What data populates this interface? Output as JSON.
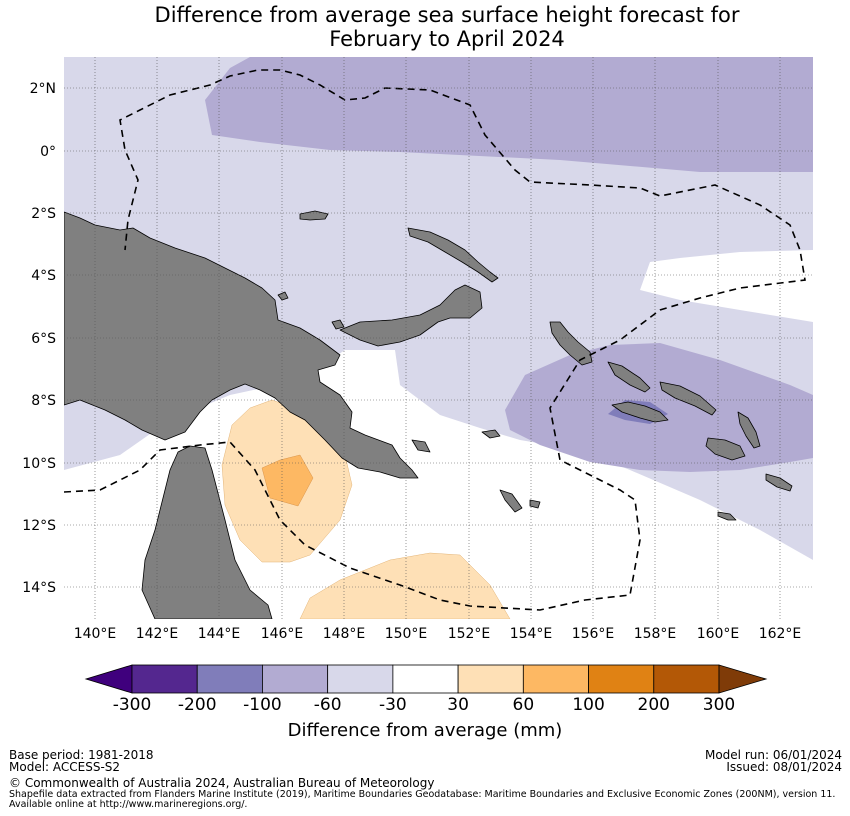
{
  "title_line1": "Difference from average sea surface height forecast for",
  "title_line2": "February to April 2024",
  "lat_labels": [
    "2°N",
    "0°",
    "2°S",
    "4°S",
    "6°S",
    "8°S",
    "10°S",
    "12°S",
    "14°S"
  ],
  "lon_labels": [
    "140°E",
    "142°E",
    "144°E",
    "146°E",
    "148°E",
    "150°E",
    "152°E",
    "154°E",
    "156°E",
    "158°E",
    "160°E",
    "162°E"
  ],
  "colorbar": {
    "title": "Difference from average (mm)",
    "ticks": [
      "-300",
      "-200",
      "-100",
      "-60",
      "-30",
      "30",
      "60",
      "100",
      "200",
      "300"
    ],
    "colors": [
      "#3f007d",
      "#54278f",
      "#807dba",
      "#b2abd2",
      "#d8d8ea",
      "#ffffff",
      "#fee0b6",
      "#fdb863",
      "#e08214",
      "#b35806",
      "#7f3b08"
    ]
  },
  "colors": {
    "land": "#808080",
    "ocean_light_purple": "#d8d8ea",
    "ocean_mid_purple": "#b2abd2",
    "ocean_dark_purple": "#807dba",
    "neutral": "#ffffff",
    "light_orange": "#fee0b6",
    "mid_orange": "#fdb863"
  },
  "footer": {
    "base_period": "Base period: 1981-2018",
    "model": "Model: ACCESS-S2",
    "model_run": "Model run: 06/01/2024",
    "issued": "Issued: 08/01/2024",
    "copyright": "© Commonwealth of Australia 2024, Australian Bureau of Meteorology",
    "shapefile": "Shapefile data extracted from Flanders Marine Institute (2019), Maritime Boundaries Geodatabase: Maritime Boundaries and Exclusive Economic Zones (200NM), version 11.",
    "available": "Available online at http://www.marineregions.org/."
  }
}
